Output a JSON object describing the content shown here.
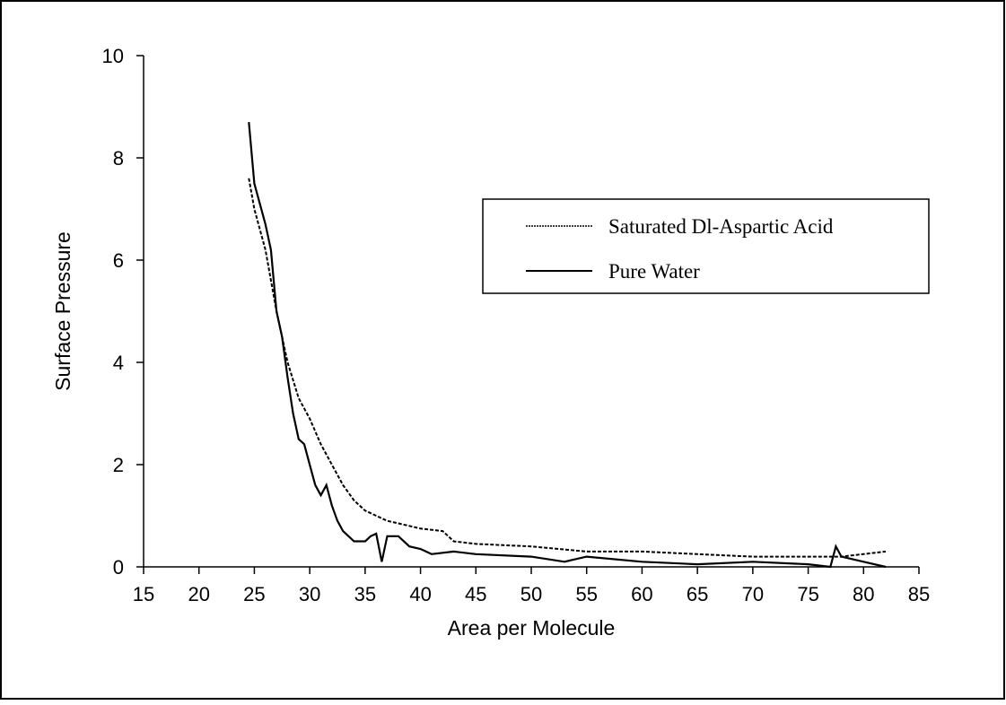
{
  "chart_data": {
    "type": "line",
    "x_label": "Area per Molecule",
    "y_label": "Surface Pressure",
    "xlim": [
      15,
      85
    ],
    "xticks": [
      15,
      20,
      25,
      30,
      35,
      40,
      45,
      50,
      55,
      60,
      65,
      70,
      75,
      80,
      85
    ],
    "ylim": [
      0,
      10
    ],
    "yticks": [
      0,
      2,
      4,
      6,
      8,
      10
    ],
    "grid": false,
    "legend": "upper right",
    "series": [
      {
        "name": "Saturated Dl-Aspartic Acid",
        "color": "#000000",
        "style": "dotted",
        "x": [
          24.5,
          25,
          26,
          27,
          28,
          29,
          30,
          31,
          32,
          33,
          34,
          35,
          36,
          37,
          38,
          40,
          42,
          43,
          45,
          50,
          55,
          60,
          65,
          70,
          75,
          78,
          82
        ],
        "values": [
          7.6,
          7.0,
          6.2,
          5.0,
          4.0,
          3.3,
          2.9,
          2.4,
          2.0,
          1.6,
          1.3,
          1.1,
          1.0,
          0.9,
          0.85,
          0.75,
          0.7,
          0.5,
          0.45,
          0.4,
          0.3,
          0.3,
          0.25,
          0.2,
          0.2,
          0.2,
          0.3
        ]
      },
      {
        "name": "Pure Water",
        "color": "#000000",
        "style": "solid",
        "x": [
          24.5,
          25,
          25.5,
          26,
          26.5,
          27,
          27.5,
          28,
          28.5,
          29,
          29.5,
          30,
          30.5,
          31,
          31.5,
          32,
          32.5,
          33,
          34,
          35,
          35.5,
          36,
          36.5,
          37,
          38,
          39,
          40,
          41,
          43,
          45,
          50,
          53,
          55,
          60,
          65,
          70,
          75,
          77,
          77.5,
          78,
          80,
          82
        ],
        "values": [
          8.7,
          7.5,
          7.1,
          6.7,
          6.2,
          5.0,
          4.5,
          3.7,
          3.0,
          2.5,
          2.4,
          2.0,
          1.6,
          1.4,
          1.6,
          1.2,
          0.9,
          0.7,
          0.5,
          0.5,
          0.6,
          0.65,
          0.1,
          0.6,
          0.6,
          0.4,
          0.35,
          0.25,
          0.3,
          0.25,
          0.2,
          0.1,
          0.2,
          0.1,
          0.05,
          0.1,
          0.05,
          0.0,
          0.4,
          0.2,
          0.1,
          0.0
        ]
      }
    ]
  }
}
